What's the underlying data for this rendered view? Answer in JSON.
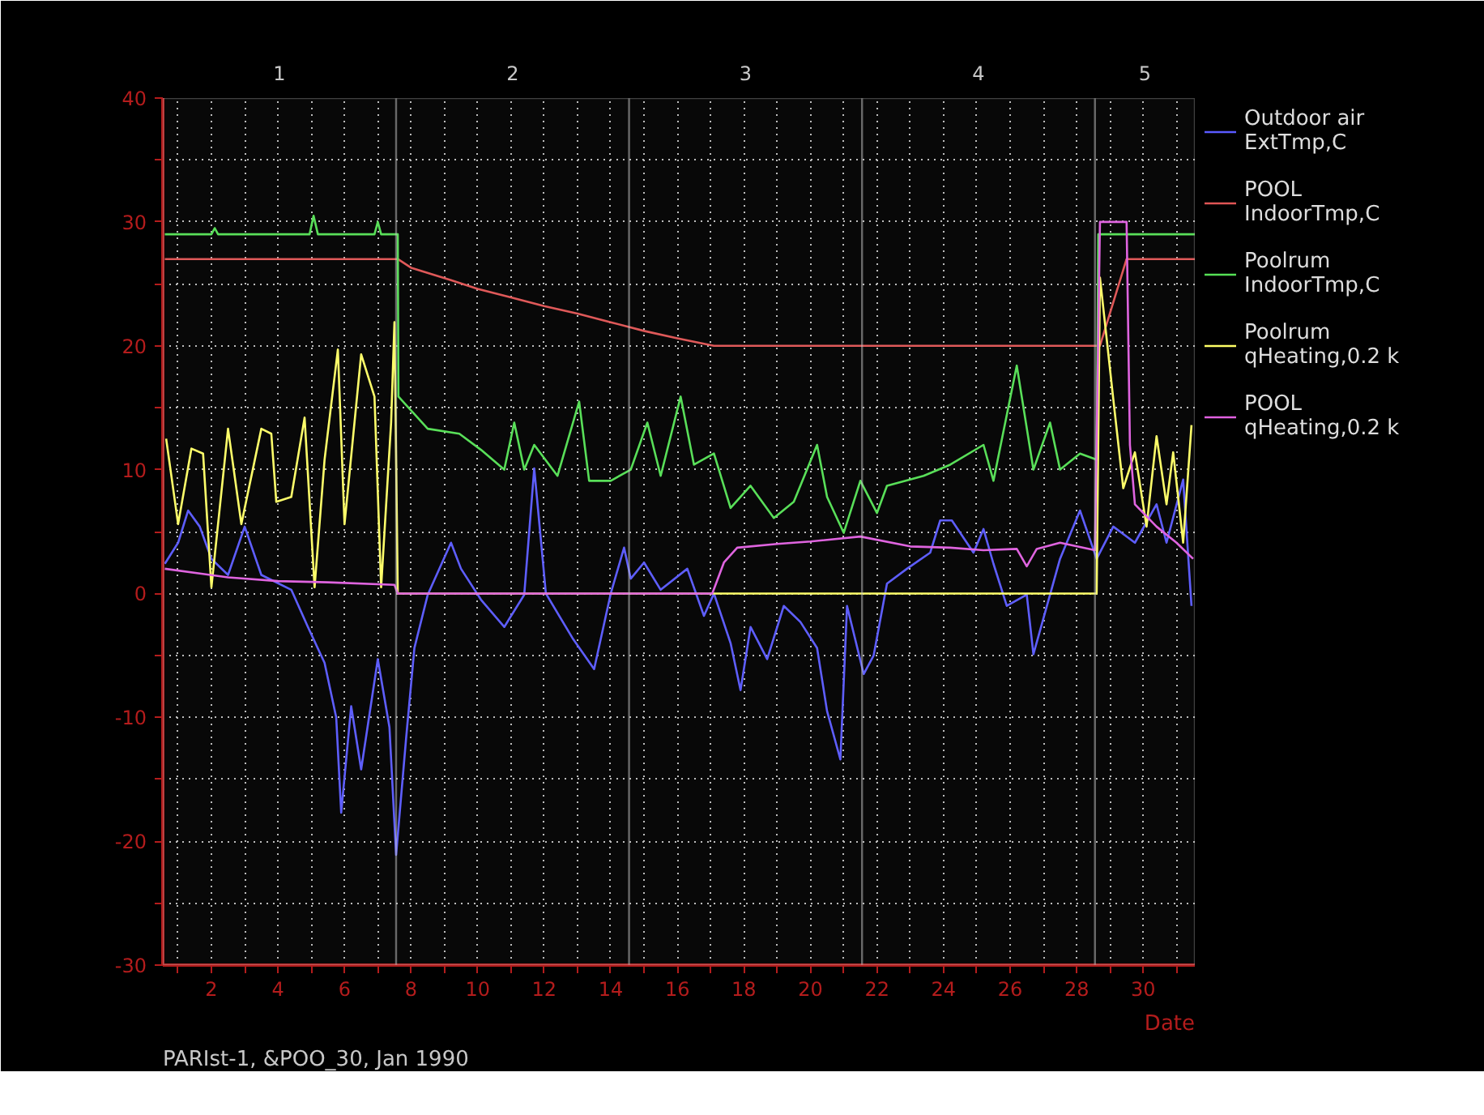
{
  "chart_data": {
    "type": "line",
    "xlabel": "Date",
    "annotations": [
      "PARIst-1, &POO_30, Jan 1990"
    ],
    "xlim": [
      0.54,
      31.55
    ],
    "ylim": [
      -30,
      40
    ],
    "xticks": [
      {
        "value": 1,
        "label": null
      },
      2,
      {
        "value": 3,
        "label": null
      },
      4,
      {
        "value": 5,
        "label": null
      },
      6,
      {
        "value": 7,
        "label": null
      },
      8,
      {
        "value": 9,
        "label": null
      },
      10,
      {
        "value": 11,
        "label": null
      },
      12,
      {
        "value": 13,
        "label": null
      },
      14,
      {
        "value": 15,
        "label": null
      },
      16,
      {
        "value": 17,
        "label": null
      },
      18,
      {
        "value": 19,
        "label": null
      },
      20,
      {
        "value": 21,
        "label": null
      },
      22,
      {
        "value": 23,
        "label": null
      },
      24,
      {
        "value": 25,
        "label": null
      },
      26,
      {
        "value": 27,
        "label": null
      },
      28,
      {
        "value": 29,
        "label": null
      },
      30,
      {
        "value": 31,
        "label": null
      }
    ],
    "yticks": [
      -30,
      {
        "value": -25,
        "label": null
      },
      -20,
      {
        "value": -15,
        "label": null
      },
      -10,
      {
        "value": -5,
        "label": null
      },
      0,
      {
        "value": 5,
        "label": null
      },
      10,
      {
        "value": 15,
        "label": null
      },
      20,
      {
        "value": 25,
        "label": null
      },
      30,
      {
        "value": 35,
        "label": null
      },
      40
    ],
    "bands": [
      {
        "axis": "x",
        "from": 0.54,
        "to": 7.55,
        "label": "1",
        "color": "#c8c8c8"
      },
      {
        "axis": "x",
        "from": 7.55,
        "to": 14.55,
        "label": "2",
        "color": "#c8c8c8"
      },
      {
        "axis": "x",
        "from": 14.55,
        "to": 21.55,
        "label": "3",
        "color": "#c8c8c8"
      },
      {
        "axis": "x",
        "from": 21.55,
        "to": 28.55,
        "label": "4",
        "color": "#c8c8c8"
      },
      {
        "axis": "x",
        "from": 28.55,
        "to": 31.55,
        "label": "5",
        "color": "#c8c8c8"
      }
    ],
    "grid": true,
    "legend": "right",
    "line_style": "solid",
    "series": [
      {
        "name": "Outdoor air\nExtTmp,C",
        "color": "#5a5aff",
        "x": [
          0.6,
          1.0,
          1.3,
          1.65,
          2.0,
          2.5,
          3.0,
          3.5,
          4.4,
          4.9,
          5.4,
          5.75,
          5.9,
          6.2,
          6.5,
          7.0,
          7.35,
          7.55,
          7.85,
          8.1,
          8.5,
          9.2,
          9.5,
          10.1,
          10.8,
          11.4,
          11.7,
          12.05,
          12.85,
          13.5,
          14.0,
          14.4,
          14.6,
          15.0,
          15.5,
          16.3,
          16.8,
          17.1,
          17.6,
          17.9,
          18.2,
          18.7,
          19.2,
          19.7,
          20.2,
          20.5,
          20.9,
          21.1,
          21.6,
          21.9,
          22.3,
          22.9,
          23.6,
          23.9,
          24.25,
          24.9,
          25.2,
          25.5,
          25.9,
          26.5,
          26.7,
          27.2,
          27.5,
          28.1,
          28.6,
          29.1,
          29.75,
          30.4,
          30.7,
          31.2,
          31.45
        ],
        "values": [
          2.4,
          4.1,
          6.7,
          5.4,
          2.8,
          1.5,
          5.4,
          1.5,
          0.3,
          -2.7,
          -5.6,
          -10,
          -17.7,
          -9.1,
          -14.2,
          -5.3,
          -10.8,
          -21.1,
          -11.7,
          -4.4,
          -0.1,
          4.1,
          2,
          -0.5,
          -2.7,
          -0.1,
          10.1,
          0,
          -3.6,
          -6.1,
          0,
          3.7,
          1.2,
          2.5,
          0.3,
          2,
          -1.8,
          0,
          -4,
          -7.8,
          -2.7,
          -5.3,
          -1,
          -2.3,
          -4.4,
          -9.5,
          -13.4,
          -1,
          -6.5,
          -5,
          0.8,
          2,
          3.3,
          5.9,
          5.9,
          3.3,
          5.2,
          2.4,
          -1,
          -0.1,
          -4.9,
          -0.1,
          2.8,
          6.7,
          2.8,
          5.4,
          4.1,
          7.2,
          4.1,
          9.2,
          -1
        ]
      },
      {
        "name": "POOL\nIndoorTmp,C",
        "color": "#e05555",
        "x": [
          0.6,
          7.6,
          8,
          9.2,
          10,
          11,
          12,
          13,
          14,
          15,
          16,
          17.1,
          28.7,
          29.5,
          31.55
        ],
        "values": [
          27,
          27,
          26.3,
          25.3,
          24.6,
          23.9,
          23.2,
          22.6,
          21.9,
          21.2,
          20.6,
          20,
          20,
          27,
          27
        ]
      },
      {
        "name": "Poolrum\nIndoorTmp,C",
        "color": "#55e055",
        "x": [
          0.6,
          2.0,
          2.1,
          2.2,
          4.95,
          5.07,
          5.2,
          6.9,
          7.0,
          7.1,
          7.6,
          7.62,
          8.5,
          9.45,
          10.1,
          10.8,
          11.1,
          11.4,
          11.7,
          12.4,
          13.05,
          13.35,
          14.0,
          14.6,
          15.1,
          15.5,
          16.1,
          16.5,
          17.1,
          17.6,
          18.2,
          18.9,
          19.5,
          20.2,
          20.5,
          21.0,
          21.5,
          22.0,
          22.3,
          23.4,
          24.2,
          25.2,
          25.5,
          26.2,
          26.7,
          27.2,
          27.5,
          28.1,
          28.6,
          28.65,
          31.55
        ],
        "values": [
          29,
          29,
          29.5,
          29,
          29,
          30.5,
          29,
          29,
          30,
          29,
          29,
          15.9,
          13.3,
          12.9,
          11.6,
          10,
          13.8,
          10,
          12,
          9.5,
          15.5,
          9.1,
          9.1,
          10,
          13.8,
          9.5,
          15.9,
          10.4,
          11.3,
          6.9,
          8.7,
          6.1,
          7.4,
          12,
          7.8,
          4.9,
          9.1,
          6.5,
          8.7,
          9.5,
          10.4,
          12,
          9.1,
          18.4,
          10,
          13.8,
          10,
          11.3,
          10.8,
          29,
          29
        ]
      },
      {
        "name": "Poolrum\nqHeating,0.2 k",
        "color": "#ffff66",
        "x": [
          0.64,
          1.0,
          1.4,
          1.75,
          2.0,
          2.5,
          2.9,
          3.5,
          3.8,
          3.95,
          4.4,
          4.8,
          5.1,
          5.4,
          5.8,
          6.0,
          6.5,
          6.9,
          7.1,
          7.4,
          7.5,
          7.6,
          28.6,
          28.7,
          29.1,
          29.4,
          29.75,
          30.1,
          30.4,
          30.7,
          30.9,
          31.2,
          31.45
        ],
        "values": [
          12.5,
          5.6,
          11.7,
          11.3,
          0.5,
          13.3,
          5.6,
          13.3,
          12.9,
          7.4,
          7.8,
          14.2,
          0.5,
          10.8,
          19.7,
          5.6,
          19.3,
          15.9,
          0.5,
          13.8,
          21.9,
          0,
          0,
          25.5,
          15.7,
          8.5,
          11.4,
          5.4,
          12.7,
          7.2,
          11.4,
          4.1,
          13.6
        ]
      },
      {
        "name": "POOL\nqHeating,0.2 k",
        "color": "#e060e0",
        "x": [
          0.6,
          2.5,
          4,
          5.5,
          7.5,
          7.6,
          17.05,
          17.4,
          17.8,
          19,
          20,
          21.5,
          23,
          24.2,
          25.2,
          26.2,
          26.5,
          26.8,
          27.5,
          28.55,
          28.7,
          29.5,
          29.6,
          29.75,
          30.4,
          31.0,
          31.5
        ],
        "values": [
          2,
          1.3,
          1.0,
          0.9,
          0.7,
          0,
          0,
          2.5,
          3.7,
          4,
          4.2,
          4.6,
          3.8,
          3.7,
          3.5,
          3.6,
          2.2,
          3.6,
          4.1,
          3.5,
          30,
          30,
          12,
          7.2,
          5.4,
          4.1,
          2.8
        ]
      }
    ]
  }
}
